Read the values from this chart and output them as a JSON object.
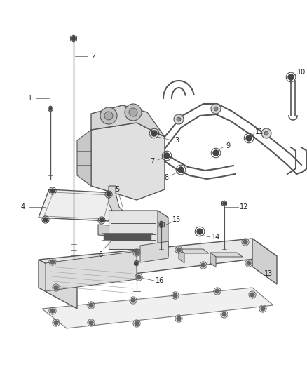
{
  "background_color": "#ffffff",
  "line_color": "#555555",
  "dark_color": "#333333",
  "fig_width": 4.38,
  "fig_height": 5.33,
  "dpi": 100
}
